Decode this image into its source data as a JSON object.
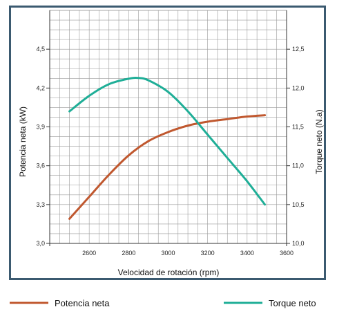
{
  "chart_data": {
    "type": "line",
    "title": "",
    "xlabel": "Velocidad de rotación (rpm)",
    "ylabel_left": "Potencia neta (kW)",
    "ylabel_right": "Torque neto (N.a)",
    "xlim": [
      2400,
      3600
    ],
    "ylim_left": [
      3.0,
      4.8
    ],
    "ylim_right": [
      10.0,
      13.0
    ],
    "x_ticks": [
      "2600",
      "2800",
      "3000",
      "3200",
      "3400",
      "3600"
    ],
    "x_tick_values": [
      2600,
      2800,
      3000,
      3200,
      3400,
      3600
    ],
    "y_left_ticks": [
      "3,0",
      "3,3",
      "3,6",
      "3,9",
      "4,2",
      "4,5"
    ],
    "y_left_tick_values": [
      3.0,
      3.3,
      3.6,
      3.9,
      4.2,
      4.5
    ],
    "y_right_ticks": [
      "10,0",
      "10,5",
      "11,0",
      "11,5",
      "12,0",
      "12,5"
    ],
    "y_right_tick_values": [
      10.0,
      10.5,
      11.0,
      11.5,
      12.0,
      12.5
    ],
    "grid": true,
    "legend_position": "bottom",
    "series": [
      {
        "name": "Potencia neta",
        "axis": "left",
        "color": "#c0582f",
        "x": [
          2500,
          2600,
          2700,
          2800,
          2900,
          3000,
          3100,
          3200,
          3300,
          3400,
          3490
        ],
        "y": [
          3.19,
          3.36,
          3.53,
          3.68,
          3.79,
          3.86,
          3.91,
          3.94,
          3.96,
          3.98,
          3.99
        ]
      },
      {
        "name": "Torque neto",
        "axis": "right",
        "color": "#1fae97",
        "x": [
          2500,
          2600,
          2700,
          2800,
          2850,
          2900,
          3000,
          3100,
          3200,
          3300,
          3400,
          3490
        ],
        "y": [
          11.7,
          11.9,
          12.05,
          12.12,
          12.13,
          12.1,
          11.95,
          11.7,
          11.4,
          11.1,
          10.8,
          10.5
        ]
      }
    ]
  }
}
